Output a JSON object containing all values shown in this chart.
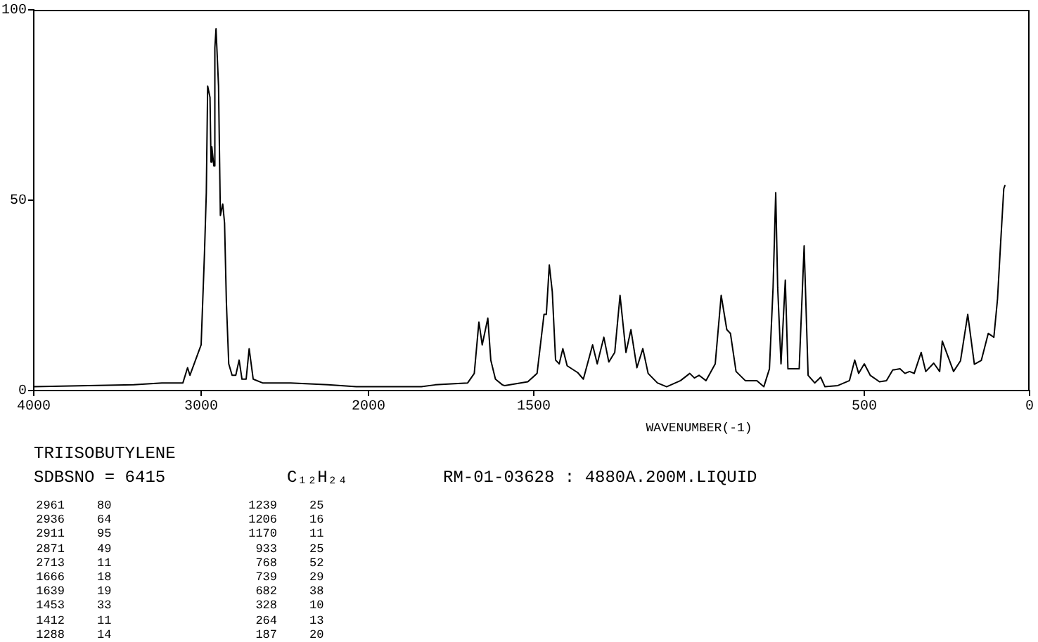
{
  "chart_data": [
    {
      "type": "line",
      "title": "TRIISOBUTYLENE",
      "color": "#000000",
      "marker": "none",
      "legend": false,
      "grid": false,
      "xlim": [
        4000,
        2000
      ],
      "xticks": [
        4000,
        3000
      ],
      "ylim": [
        0,
        100
      ],
      "yticks": [
        0,
        50,
        100
      ],
      "x": [
        4000,
        3403,
        3235,
        3109,
        3081,
        3067,
        3000,
        2980,
        2969,
        2961,
        2947,
        2941,
        2936,
        2924,
        2918,
        2911,
        2896,
        2885,
        2871,
        2860,
        2849,
        2835,
        2815,
        2793,
        2773,
        2756,
        2731,
        2713,
        2689,
        2633,
        2465,
        2241,
        2073,
        2000
      ],
      "values": [
        1,
        1.5,
        2,
        2,
        6,
        4,
        12,
        36,
        52,
        80,
        77,
        60,
        64,
        59,
        90,
        95,
        80,
        46,
        49,
        44,
        23,
        7,
        4,
        4,
        8,
        3,
        3,
        11,
        3,
        2,
        2,
        1.5,
        1,
        1
      ],
      "annotations": [
        "SDBSNO = 6415",
        "C₁₂H₂₄",
        "RM-01-03628 : 4880A.200M.LIQUID",
        "2961 80",
        "2936 64",
        "2911 95",
        "2871 49",
        "2713 11",
        "1666 18",
        "1639 19",
        "1453 33",
        "1412 11",
        "1288 14",
        "1239 25",
        "1206 16",
        "1170 11",
        "933 25",
        "768 52",
        "739 29",
        "682 38",
        "328 10",
        "264 13",
        "187 20"
      ]
    },
    {
      "type": "line",
      "xlabel": "WAVENUMBER(-1)",
      "color": "#000000",
      "marker": "none",
      "legend": false,
      "grid": false,
      "tick_labels": "x",
      "xlim": [
        2000,
        0
      ],
      "xticks": [
        2000,
        1500,
        500,
        0
      ],
      "ylim": [
        0,
        100
      ],
      "x": [
        2000,
        1840,
        1798,
        1700,
        1680,
        1666,
        1656,
        1639,
        1630,
        1616,
        1595,
        1588,
        1518,
        1490,
        1469,
        1462,
        1453,
        1444,
        1434,
        1423,
        1412,
        1399,
        1367,
        1350,
        1322,
        1308,
        1288,
        1273,
        1255,
        1239,
        1221,
        1206,
        1188,
        1170,
        1154,
        1126,
        1098,
        1056,
        1028,
        1014,
        1000,
        979,
        951,
        933,
        916,
        905,
        888,
        860,
        825,
        804,
        787,
        776,
        768,
        762,
        752,
        739,
        731,
        697,
        682,
        670,
        650,
        632,
        619,
        580,
        545,
        529,
        517,
        500,
        482,
        454,
        433,
        414,
        392,
        377,
        363,
        349,
        328,
        314,
        290,
        272,
        264,
        230,
        209,
        187,
        167,
        146,
        125,
        108,
        97,
        87,
        78,
        74
      ],
      "values": [
        1,
        1,
        1.5,
        2,
        4.5,
        18,
        12,
        19,
        8,
        3,
        1.5,
        1.3,
        2.3,
        4.5,
        20,
        20,
        33,
        26,
        8,
        7,
        11,
        6.5,
        4.7,
        3,
        12,
        7,
        14,
        7.5,
        10,
        25,
        10,
        16,
        6,
        11,
        4.5,
        2,
        1,
        2.6,
        4.5,
        3.3,
        4,
        2.6,
        7,
        25,
        16,
        15,
        5,
        2.6,
        2.6,
        1,
        5.7,
        27,
        52,
        27,
        7,
        29,
        5.7,
        5.7,
        38,
        4,
        2,
        3.5,
        1,
        1.3,
        2.6,
        8,
        4.5,
        7,
        4,
        2.3,
        2.6,
        5.4,
        5.7,
        4.5,
        5,
        4.5,
        10,
        5,
        7.2,
        5,
        13,
        5,
        7.8,
        20,
        6.9,
        7.9,
        15,
        14,
        24,
        39.5,
        53,
        54
      ]
    }
  ]
}
